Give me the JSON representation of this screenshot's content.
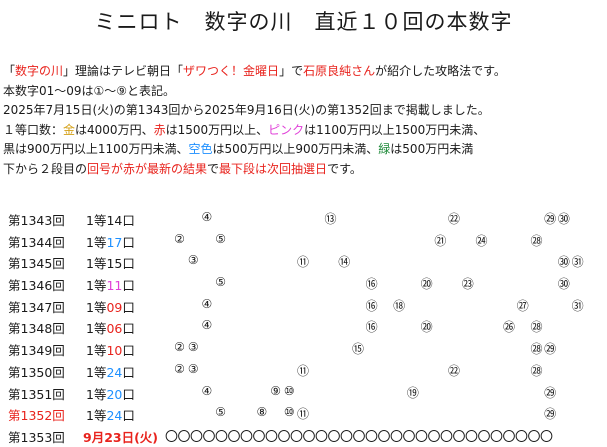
{
  "page": {
    "title": "ミニロト　数字の川　直近１０回の本数字"
  },
  "colors": {
    "text": "#1a1a1a",
    "red": "#e8231d",
    "gold": "#d4a017",
    "pink": "#e040d8",
    "sky": "#1e90ff",
    "green": "#1f8a3a"
  },
  "intro": {
    "lines": [
      [
        {
          "text": "「",
          "color": ""
        },
        {
          "text": "数字の川",
          "color": "red"
        },
        {
          "text": "」理論はテレビ朝日「",
          "color": ""
        },
        {
          "text": "ザワつく！金曜日",
          "color": "red"
        },
        {
          "text": "」で",
          "color": ""
        },
        {
          "text": "石原良純さん",
          "color": "red"
        },
        {
          "text": "が紹介した攻略法です。",
          "color": ""
        }
      ],
      [
        {
          "text": " 本数字01〜09は①〜⑨と表記。",
          "color": ""
        }
      ],
      [
        {
          "text": " 2025年7月15日(火)の第1343回から2025年9月16日(火)の第1352回まで掲載しました。",
          "color": ""
        }
      ],
      [
        {
          "text": " １等口数：",
          "color": ""
        },
        {
          "text": "金",
          "color": "gold"
        },
        {
          "text": "は4000万円、",
          "color": ""
        },
        {
          "text": "赤",
          "color": "red"
        },
        {
          "text": "は1500万円以上、",
          "color": ""
        },
        {
          "text": "ピンク",
          "color": "pink"
        },
        {
          "text": "は1100万円以上1500万円未満、",
          "color": ""
        }
      ],
      [
        {
          "text": " 黒は900万円以上1100万円未満、",
          "color": ""
        },
        {
          "text": "空色",
          "color": "sky"
        },
        {
          "text": "は500万円以上900万円未満、",
          "color": ""
        },
        {
          "text": "緑",
          "color": "green"
        },
        {
          "text": "は500万円未満",
          "color": ""
        }
      ],
      [
        {
          "text": "下から２段目の",
          "color": ""
        },
        {
          "text": "回号が赤が最新の結果",
          "color": "red"
        },
        {
          "text": "で",
          "color": ""
        },
        {
          "text": "最下段は次回抽選日",
          "color": "red"
        },
        {
          "text": "です。",
          "color": ""
        }
      ]
    ]
  },
  "draws": [
    {
      "draw": "第1343回",
      "draw_color": "",
      "prize_prefix": "1等",
      "prize_count": "14",
      "prize_suffix": "口",
      "prize_color": "",
      "numbers": [
        {
          "n": 4,
          "label": "④"
        },
        {
          "n": 13,
          "label": "⑬"
        },
        {
          "n": 22,
          "label": "㉒"
        },
        {
          "n": 29,
          "label": "㉙"
        },
        {
          "n": 30,
          "label": "㉚"
        }
      ]
    },
    {
      "draw": "第1344回",
      "draw_color": "",
      "prize_prefix": "1等",
      "prize_count": "17",
      "prize_suffix": "口",
      "prize_color": "sky",
      "numbers": [
        {
          "n": 2,
          "label": "②"
        },
        {
          "n": 5,
          "label": "⑤"
        },
        {
          "n": 21,
          "label": "㉑"
        },
        {
          "n": 24,
          "label": "㉔"
        },
        {
          "n": 28,
          "label": "㉘"
        }
      ]
    },
    {
      "draw": "第1345回",
      "draw_color": "",
      "prize_prefix": "1等",
      "prize_count": "15",
      "prize_suffix": "口",
      "prize_color": "",
      "numbers": [
        {
          "n": 3,
          "label": "③"
        },
        {
          "n": 11,
          "label": "⑪"
        },
        {
          "n": 14,
          "label": "⑭"
        },
        {
          "n": 30,
          "label": "㉚"
        },
        {
          "n": 31,
          "label": "㉛"
        }
      ]
    },
    {
      "draw": "第1346回",
      "draw_color": "",
      "prize_prefix": "1等",
      "prize_count": "11",
      "prize_suffix": "口",
      "prize_color": "pink",
      "numbers": [
        {
          "n": 5,
          "label": "⑤"
        },
        {
          "n": 16,
          "label": "⑯"
        },
        {
          "n": 20,
          "label": "⑳"
        },
        {
          "n": 23,
          "label": "㉓"
        },
        {
          "n": 30,
          "label": "㉚"
        }
      ]
    },
    {
      "draw": "第1347回",
      "draw_color": "",
      "prize_prefix": "1等",
      "prize_count": "09",
      "prize_suffix": "口",
      "prize_color": "red",
      "numbers": [
        {
          "n": 4,
          "label": "④"
        },
        {
          "n": 16,
          "label": "⑯"
        },
        {
          "n": 18,
          "label": "⑱"
        },
        {
          "n": 27,
          "label": "㉗"
        },
        {
          "n": 31,
          "label": "㉛"
        }
      ]
    },
    {
      "draw": "第1348回",
      "draw_color": "",
      "prize_prefix": "1等",
      "prize_count": "06",
      "prize_suffix": "口",
      "prize_color": "red",
      "numbers": [
        {
          "n": 4,
          "label": "④"
        },
        {
          "n": 16,
          "label": "⑯"
        },
        {
          "n": 20,
          "label": "⑳"
        },
        {
          "n": 26,
          "label": "㉖"
        },
        {
          "n": 28,
          "label": "㉘"
        }
      ]
    },
    {
      "draw": "第1349回",
      "draw_color": "",
      "prize_prefix": "1等",
      "prize_count": "10",
      "prize_suffix": "口",
      "prize_color": "red",
      "numbers": [
        {
          "n": 2,
          "label": "②"
        },
        {
          "n": 3,
          "label": "③"
        },
        {
          "n": 15,
          "label": "⑮"
        },
        {
          "n": 28,
          "label": "㉘"
        },
        {
          "n": 29,
          "label": "㉙"
        }
      ]
    },
    {
      "draw": "第1350回",
      "draw_color": "",
      "prize_prefix": "1等",
      "prize_count": "24",
      "prize_suffix": "口",
      "prize_color": "sky",
      "numbers": [
        {
          "n": 2,
          "label": "②"
        },
        {
          "n": 3,
          "label": "③"
        },
        {
          "n": 11,
          "label": "⑪"
        },
        {
          "n": 22,
          "label": "㉒"
        },
        {
          "n": 28,
          "label": "㉘"
        }
      ]
    },
    {
      "draw": "第1351回",
      "draw_color": "",
      "prize_prefix": "1等",
      "prize_count": "20",
      "prize_suffix": "口",
      "prize_color": "sky",
      "numbers": [
        {
          "n": 4,
          "label": "④"
        },
        {
          "n": 9,
          "label": "⑨"
        },
        {
          "n": 10,
          "label": "⑩"
        },
        {
          "n": 19,
          "label": "⑲"
        },
        {
          "n": 29,
          "label": "㉙"
        }
      ]
    },
    {
      "draw": "第1352回",
      "draw_color": "red",
      "prize_prefix": "1等",
      "prize_count": "24",
      "prize_suffix": "口",
      "prize_color": "sky",
      "numbers": [
        {
          "n": 5,
          "label": "⑤"
        },
        {
          "n": 8,
          "label": "⑧"
        },
        {
          "n": 10,
          "label": "⑩"
        },
        {
          "n": 11,
          "label": "⑪"
        },
        {
          "n": 29,
          "label": "㉙"
        }
      ]
    }
  ],
  "next_draw": {
    "draw": "第1353回",
    "date": "9月23日(火)",
    "date_color": "red",
    "placeholders": "〇〇〇〇〇〇〇〇〇〇〇〇〇〇〇〇〇〇〇〇〇〇〇〇〇〇〇〇〇〇〇"
  }
}
